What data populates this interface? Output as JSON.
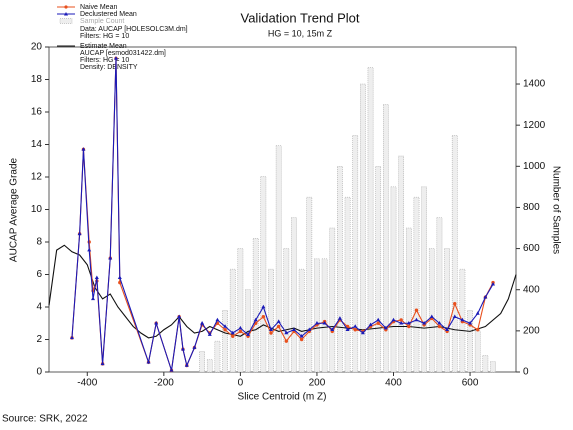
{
  "chart_data": {
    "type": "combo",
    "title": "Validation Trend Plot",
    "subtitle": "HG = 10, 15m Z",
    "x_label": "Slice Centroid (m Z)",
    "y_label": "AUCAP Average Grade",
    "y2_label": "Number of Samples",
    "xlim": [
      -500,
      720
    ],
    "xticks": [
      -400,
      -200,
      0,
      200,
      400,
      600
    ],
    "ylim": [
      0,
      20
    ],
    "yticks": [
      0,
      2,
      4,
      6,
      8,
      10,
      12,
      14,
      16,
      18,
      20
    ],
    "y2lim": [
      0,
      1580
    ],
    "y2ticks": [
      0,
      200,
      400,
      600,
      800,
      1000,
      1200,
      1400
    ],
    "sample_notes": [
      "Data: AUCAP [HOLESOLC3M.dm]",
      "Filters: HG = 10"
    ],
    "estimate_notes": [
      "AUCAP [esmod031422.dm]",
      "Filters: HG = 10",
      "Density: DENSITY"
    ],
    "series": [
      {
        "name": "Sample Count",
        "type": "bar",
        "axis": "y2",
        "color": "#eeeeee",
        "x": [
          -100,
          -80,
          -60,
          -40,
          -20,
          0,
          20,
          40,
          60,
          80,
          100,
          120,
          140,
          160,
          180,
          200,
          220,
          240,
          260,
          280,
          300,
          320,
          340,
          360,
          380,
          400,
          420,
          440,
          460,
          480,
          500,
          520,
          540,
          560,
          580,
          600,
          620,
          640,
          660
        ],
        "values": [
          100,
          60,
          150,
          300,
          500,
          600,
          400,
          650,
          950,
          500,
          1100,
          600,
          750,
          500,
          850,
          550,
          550,
          700,
          1000,
          850,
          1150,
          1400,
          1480,
          1000,
          1300,
          900,
          1050,
          700,
          850,
          900,
          600,
          750,
          600,
          1150,
          500,
          300,
          200,
          80,
          50
        ]
      },
      {
        "name": "Naive Mean",
        "type": "line",
        "color": "#e8501e",
        "x": [
          -440,
          -420,
          -410,
          -395,
          -385,
          -375,
          -360,
          -340,
          -325,
          -315,
          -240,
          -220,
          -180,
          -160,
          -150,
          -140,
          -120,
          -100,
          -80,
          -60,
          -40,
          -20,
          0,
          20,
          40,
          60,
          80,
          100,
          120,
          140,
          160,
          180,
          200,
          220,
          240,
          260,
          280,
          300,
          320,
          340,
          360,
          380,
          400,
          420,
          440,
          460,
          480,
          500,
          520,
          540,
          560,
          580,
          600,
          620,
          640,
          660
        ],
        "values": [
          2.1,
          8.5,
          13.7,
          8.0,
          5.0,
          5.6,
          0.5,
          7.0,
          19.3,
          5.5,
          0.6,
          3.0,
          0.1,
          3.4,
          1.4,
          0.4,
          1.5,
          2.9,
          2.4,
          3.0,
          2.6,
          2.2,
          2.5,
          2.2,
          3.0,
          3.4,
          2.4,
          2.8,
          1.9,
          2.5,
          2.0,
          2.5,
          2.9,
          3.1,
          2.5,
          3.2,
          2.8,
          2.6,
          2.5,
          2.8,
          3.0,
          2.6,
          3.1,
          3.2,
          2.8,
          3.8,
          2.9,
          3.3,
          2.8,
          2.5,
          4.2,
          3.1,
          2.9,
          2.6,
          4.6,
          5.5
        ]
      },
      {
        "name": "Declustered Mean",
        "type": "line",
        "color": "#1a1ab8",
        "x": [
          -440,
          -420,
          -410,
          -395,
          -385,
          -375,
          -360,
          -340,
          -325,
          -315,
          -240,
          -220,
          -180,
          -160,
          -150,
          -140,
          -120,
          -100,
          -80,
          -60,
          -40,
          -20,
          0,
          20,
          40,
          60,
          80,
          100,
          120,
          140,
          160,
          180,
          200,
          220,
          240,
          260,
          280,
          300,
          320,
          340,
          360,
          380,
          400,
          420,
          440,
          460,
          480,
          500,
          520,
          540,
          560,
          580,
          600,
          620,
          640,
          660
        ],
        "values": [
          2.1,
          8.5,
          13.7,
          7.5,
          4.5,
          5.8,
          0.5,
          7.0,
          19.3,
          5.8,
          0.6,
          3.0,
          0.1,
          3.4,
          1.4,
          0.4,
          1.5,
          3.0,
          2.3,
          3.2,
          2.8,
          2.4,
          2.7,
          2.3,
          3.2,
          4.0,
          2.6,
          3.1,
          2.4,
          2.6,
          2.2,
          2.6,
          3.0,
          3.0,
          2.6,
          3.3,
          2.6,
          2.8,
          2.4,
          2.9,
          3.2,
          2.7,
          3.2,
          3.0,
          3.0,
          3.2,
          3.0,
          3.4,
          3.0,
          2.6,
          3.4,
          3.2,
          3.0,
          3.6,
          4.6,
          5.4
        ]
      },
      {
        "name": "Estimate Mean",
        "type": "plain",
        "color": "#111111",
        "x": [
          -500,
          -480,
          -460,
          -440,
          -420,
          -400,
          -380,
          -360,
          -340,
          -320,
          -300,
          -280,
          -260,
          -240,
          -220,
          -200,
          -180,
          -160,
          -140,
          -120,
          -100,
          -80,
          -60,
          -40,
          -20,
          0,
          20,
          40,
          60,
          80,
          100,
          120,
          140,
          160,
          180,
          200,
          240,
          280,
          320,
          360,
          400,
          440,
          480,
          520,
          560,
          600,
          640,
          680,
          700,
          720
        ],
        "values": [
          4.1,
          7.5,
          7.8,
          7.4,
          7.2,
          6.6,
          5.2,
          4.5,
          4.8,
          4.0,
          3.4,
          2.8,
          2.4,
          2.1,
          2.2,
          2.6,
          2.9,
          3.4,
          2.8,
          2.4,
          2.5,
          2.8,
          2.6,
          2.4,
          2.3,
          2.2,
          2.5,
          2.6,
          2.9,
          2.7,
          2.5,
          2.6,
          2.7,
          2.5,
          2.6,
          2.7,
          2.8,
          2.7,
          2.6,
          2.7,
          2.8,
          2.8,
          2.7,
          2.8,
          2.6,
          2.5,
          2.8,
          3.6,
          4.5,
          6.0
        ]
      }
    ]
  },
  "source": "Source: SRK, 2022"
}
